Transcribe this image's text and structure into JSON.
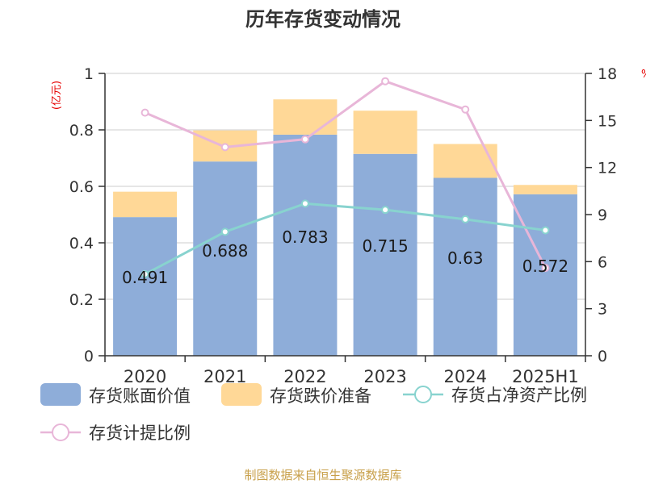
{
  "title": "历年存货变动情况",
  "unit_left": "(亿元)",
  "unit_right": "%",
  "source": "制图数据来自恒生聚源数据库",
  "colors": {
    "book_value": "#8eadd9",
    "impairment": "#ffd897",
    "net_asset_ratio": "#88d3cf",
    "provision_ratio": "#e8b6d8",
    "axis": "#333333",
    "grid": "#cccccc",
    "unit": "#e60000",
    "source": "#c8a04a"
  },
  "chart_data": {
    "type": "bar",
    "title": "历年存货变动情况",
    "categories": [
      "2020",
      "2021",
      "2022",
      "2023",
      "2024",
      "2025H1"
    ],
    "left_axis": {
      "label": "(亿元)",
      "min": 0,
      "max": 1,
      "ticks": [
        "0",
        "0.2",
        "0.4",
        "0.6",
        "0.8",
        "1"
      ]
    },
    "right_axis": {
      "label": "%",
      "min": 0,
      "max": 18,
      "ticks": [
        "0",
        "3",
        "6",
        "9",
        "12",
        "15",
        "18"
      ]
    },
    "series": [
      {
        "name": "存货账面价值",
        "kind": "bar",
        "axis": "left",
        "values": [
          0.491,
          0.688,
          0.783,
          0.715,
          0.63,
          0.572
        ],
        "labels": [
          "0.491",
          "0.688",
          "0.783",
          "0.715",
          "0.63",
          "0.572"
        ]
      },
      {
        "name": "存货跌价准备",
        "kind": "bar-stacked",
        "axis": "left",
        "values": [
          0.09,
          0.11,
          0.125,
          0.153,
          0.12,
          0.033
        ]
      },
      {
        "name": "存货占净资产比例",
        "kind": "line",
        "axis": "right",
        "values": [
          5.2,
          7.9,
          9.7,
          9.3,
          8.7,
          8.0
        ]
      },
      {
        "name": "存货计提比例",
        "kind": "line",
        "axis": "right",
        "values": [
          15.5,
          13.3,
          13.8,
          17.5,
          15.7,
          5.6
        ]
      }
    ],
    "grid": true,
    "legend": "bottom"
  }
}
